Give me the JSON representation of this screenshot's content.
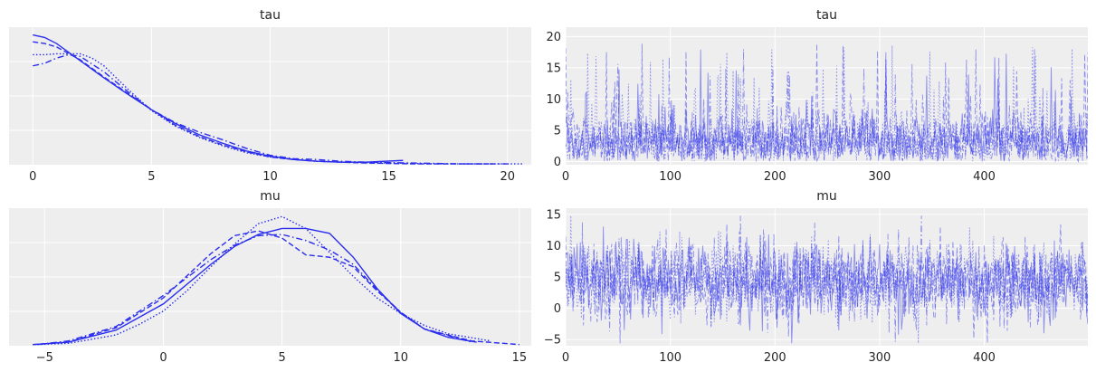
{
  "chart_data": [
    {
      "type": "line",
      "kind": "kde",
      "title": "tau",
      "xlim": [
        -1,
        21
      ],
      "ylim": [
        0,
        0.16
      ],
      "xticks": [
        0,
        5,
        10,
        15,
        20
      ],
      "ytick_labels": false,
      "grid": true,
      "color": "#2a2eec",
      "series": [
        {
          "dash": "solid",
          "x": [
            0,
            0.5,
            1,
            2,
            3,
            4,
            5,
            6,
            7,
            8,
            9,
            10,
            11,
            12,
            13,
            14,
            15.6
          ],
          "y": [
            0.151,
            0.148,
            0.141,
            0.121,
            0.101,
            0.082,
            0.064,
            0.048,
            0.035,
            0.025,
            0.016,
            0.01,
            0.006,
            0.004,
            0.003,
            0.003,
            0.005
          ]
        },
        {
          "dash": "dashed",
          "x": [
            0,
            0.5,
            1,
            2,
            3,
            4,
            5,
            6,
            7,
            8,
            9,
            10,
            11,
            12,
            13,
            14,
            16,
            18,
            19.4
          ],
          "y": [
            0.143,
            0.141,
            0.137,
            0.122,
            0.102,
            0.083,
            0.064,
            0.046,
            0.033,
            0.023,
            0.015,
            0.009,
            0.006,
            0.004,
            0.003,
            0.002,
            0.001,
            0.001,
            0.001
          ]
        },
        {
          "dash": "dashdot",
          "x": [
            0,
            0.5,
            1,
            1.5,
            2,
            3,
            4,
            5,
            6,
            7,
            8,
            9,
            10,
            11,
            12,
            13,
            14,
            16,
            18,
            20
          ],
          "y": [
            0.115,
            0.118,
            0.124,
            0.128,
            0.126,
            0.108,
            0.085,
            0.064,
            0.049,
            0.038,
            0.029,
            0.019,
            0.011,
            0.007,
            0.006,
            0.004,
            0.003,
            0.002,
            0.001,
            0.001
          ]
        },
        {
          "dash": "dotted",
          "x": [
            0,
            0.5,
            1,
            2,
            2.5,
            3,
            4,
            5,
            6,
            7,
            8,
            9,
            10,
            11,
            12,
            13,
            15,
            17,
            19,
            20.7
          ],
          "y": [
            0.128,
            0.128,
            0.129,
            0.129,
            0.124,
            0.115,
            0.088,
            0.063,
            0.045,
            0.032,
            0.022,
            0.014,
            0.009,
            0.006,
            0.004,
            0.003,
            0.002,
            0.001,
            0.001,
            0.001
          ]
        }
      ]
    },
    {
      "type": "line",
      "kind": "trace",
      "title": "tau",
      "xlim": [
        0,
        499
      ],
      "ylim": [
        -0.5,
        21.5
      ],
      "xticks": [
        0,
        100,
        200,
        300,
        400
      ],
      "yticks": [
        0,
        5,
        10,
        15,
        20
      ],
      "grid": true,
      "color": "#2a2eec",
      "n_draws": 500,
      "chains": 4,
      "value_range": [
        0,
        20.6
      ],
      "typical": 3
    },
    {
      "type": "line",
      "kind": "kde",
      "title": "mu",
      "xlim": [
        -6.5,
        15.5
      ],
      "ylim": [
        0,
        0.115
      ],
      "xticks": [
        -5,
        0,
        5,
        10,
        15
      ],
      "ytick_labels": false,
      "grid": true,
      "color": "#2a2eec",
      "series": [
        {
          "dash": "solid",
          "x": [
            -5.5,
            -4,
            -2,
            0,
            2,
            3,
            4,
            5,
            6,
            7,
            8,
            9,
            10,
            11,
            12,
            13.2
          ],
          "y": [
            0.001,
            0.003,
            0.013,
            0.035,
            0.068,
            0.083,
            0.093,
            0.098,
            0.098,
            0.094,
            0.074,
            0.048,
            0.027,
            0.014,
            0.007,
            0.003
          ]
        },
        {
          "dash": "dashed",
          "x": [
            -5.5,
            -4,
            -2,
            0,
            2,
            3,
            4,
            5,
            6,
            7,
            8,
            9,
            10,
            11,
            13,
            15
          ],
          "y": [
            0.001,
            0.003,
            0.015,
            0.04,
            0.077,
            0.092,
            0.096,
            0.09,
            0.076,
            0.074,
            0.066,
            0.046,
            0.028,
            0.014,
            0.004,
            0.001
          ]
        },
        {
          "dash": "dashdot",
          "x": [
            -5.3,
            -4,
            -2,
            0,
            2,
            3,
            4,
            5,
            6,
            7,
            8,
            9,
            10,
            11,
            13
          ],
          "y": [
            0.001,
            0.004,
            0.016,
            0.042,
            0.072,
            0.084,
            0.092,
            0.093,
            0.088,
            0.08,
            0.068,
            0.047,
            0.028,
            0.014,
            0.003
          ]
        },
        {
          "dash": "dotted",
          "x": [
            -5.3,
            -4,
            -2,
            -1,
            0,
            1,
            2,
            3,
            4,
            5,
            6,
            7,
            8,
            9,
            10,
            11,
            12,
            13.8
          ],
          "y": [
            0.001,
            0.002,
            0.009,
            0.018,
            0.029,
            0.046,
            0.066,
            0.085,
            0.102,
            0.108,
            0.098,
            0.078,
            0.058,
            0.04,
            0.027,
            0.017,
            0.01,
            0.004
          ]
        }
      ]
    },
    {
      "type": "line",
      "kind": "trace",
      "title": "mu",
      "xlim": [
        0,
        499
      ],
      "ylim": [
        -6,
        16
      ],
      "xticks": [
        0,
        100,
        200,
        300,
        400
      ],
      "yticks": [
        -5,
        0,
        5,
        10,
        15
      ],
      "grid": true,
      "color": "#2a2eec",
      "n_draws": 500,
      "chains": 4,
      "value_range": [
        -5.6,
        14.8
      ],
      "typical": 4.4
    }
  ]
}
